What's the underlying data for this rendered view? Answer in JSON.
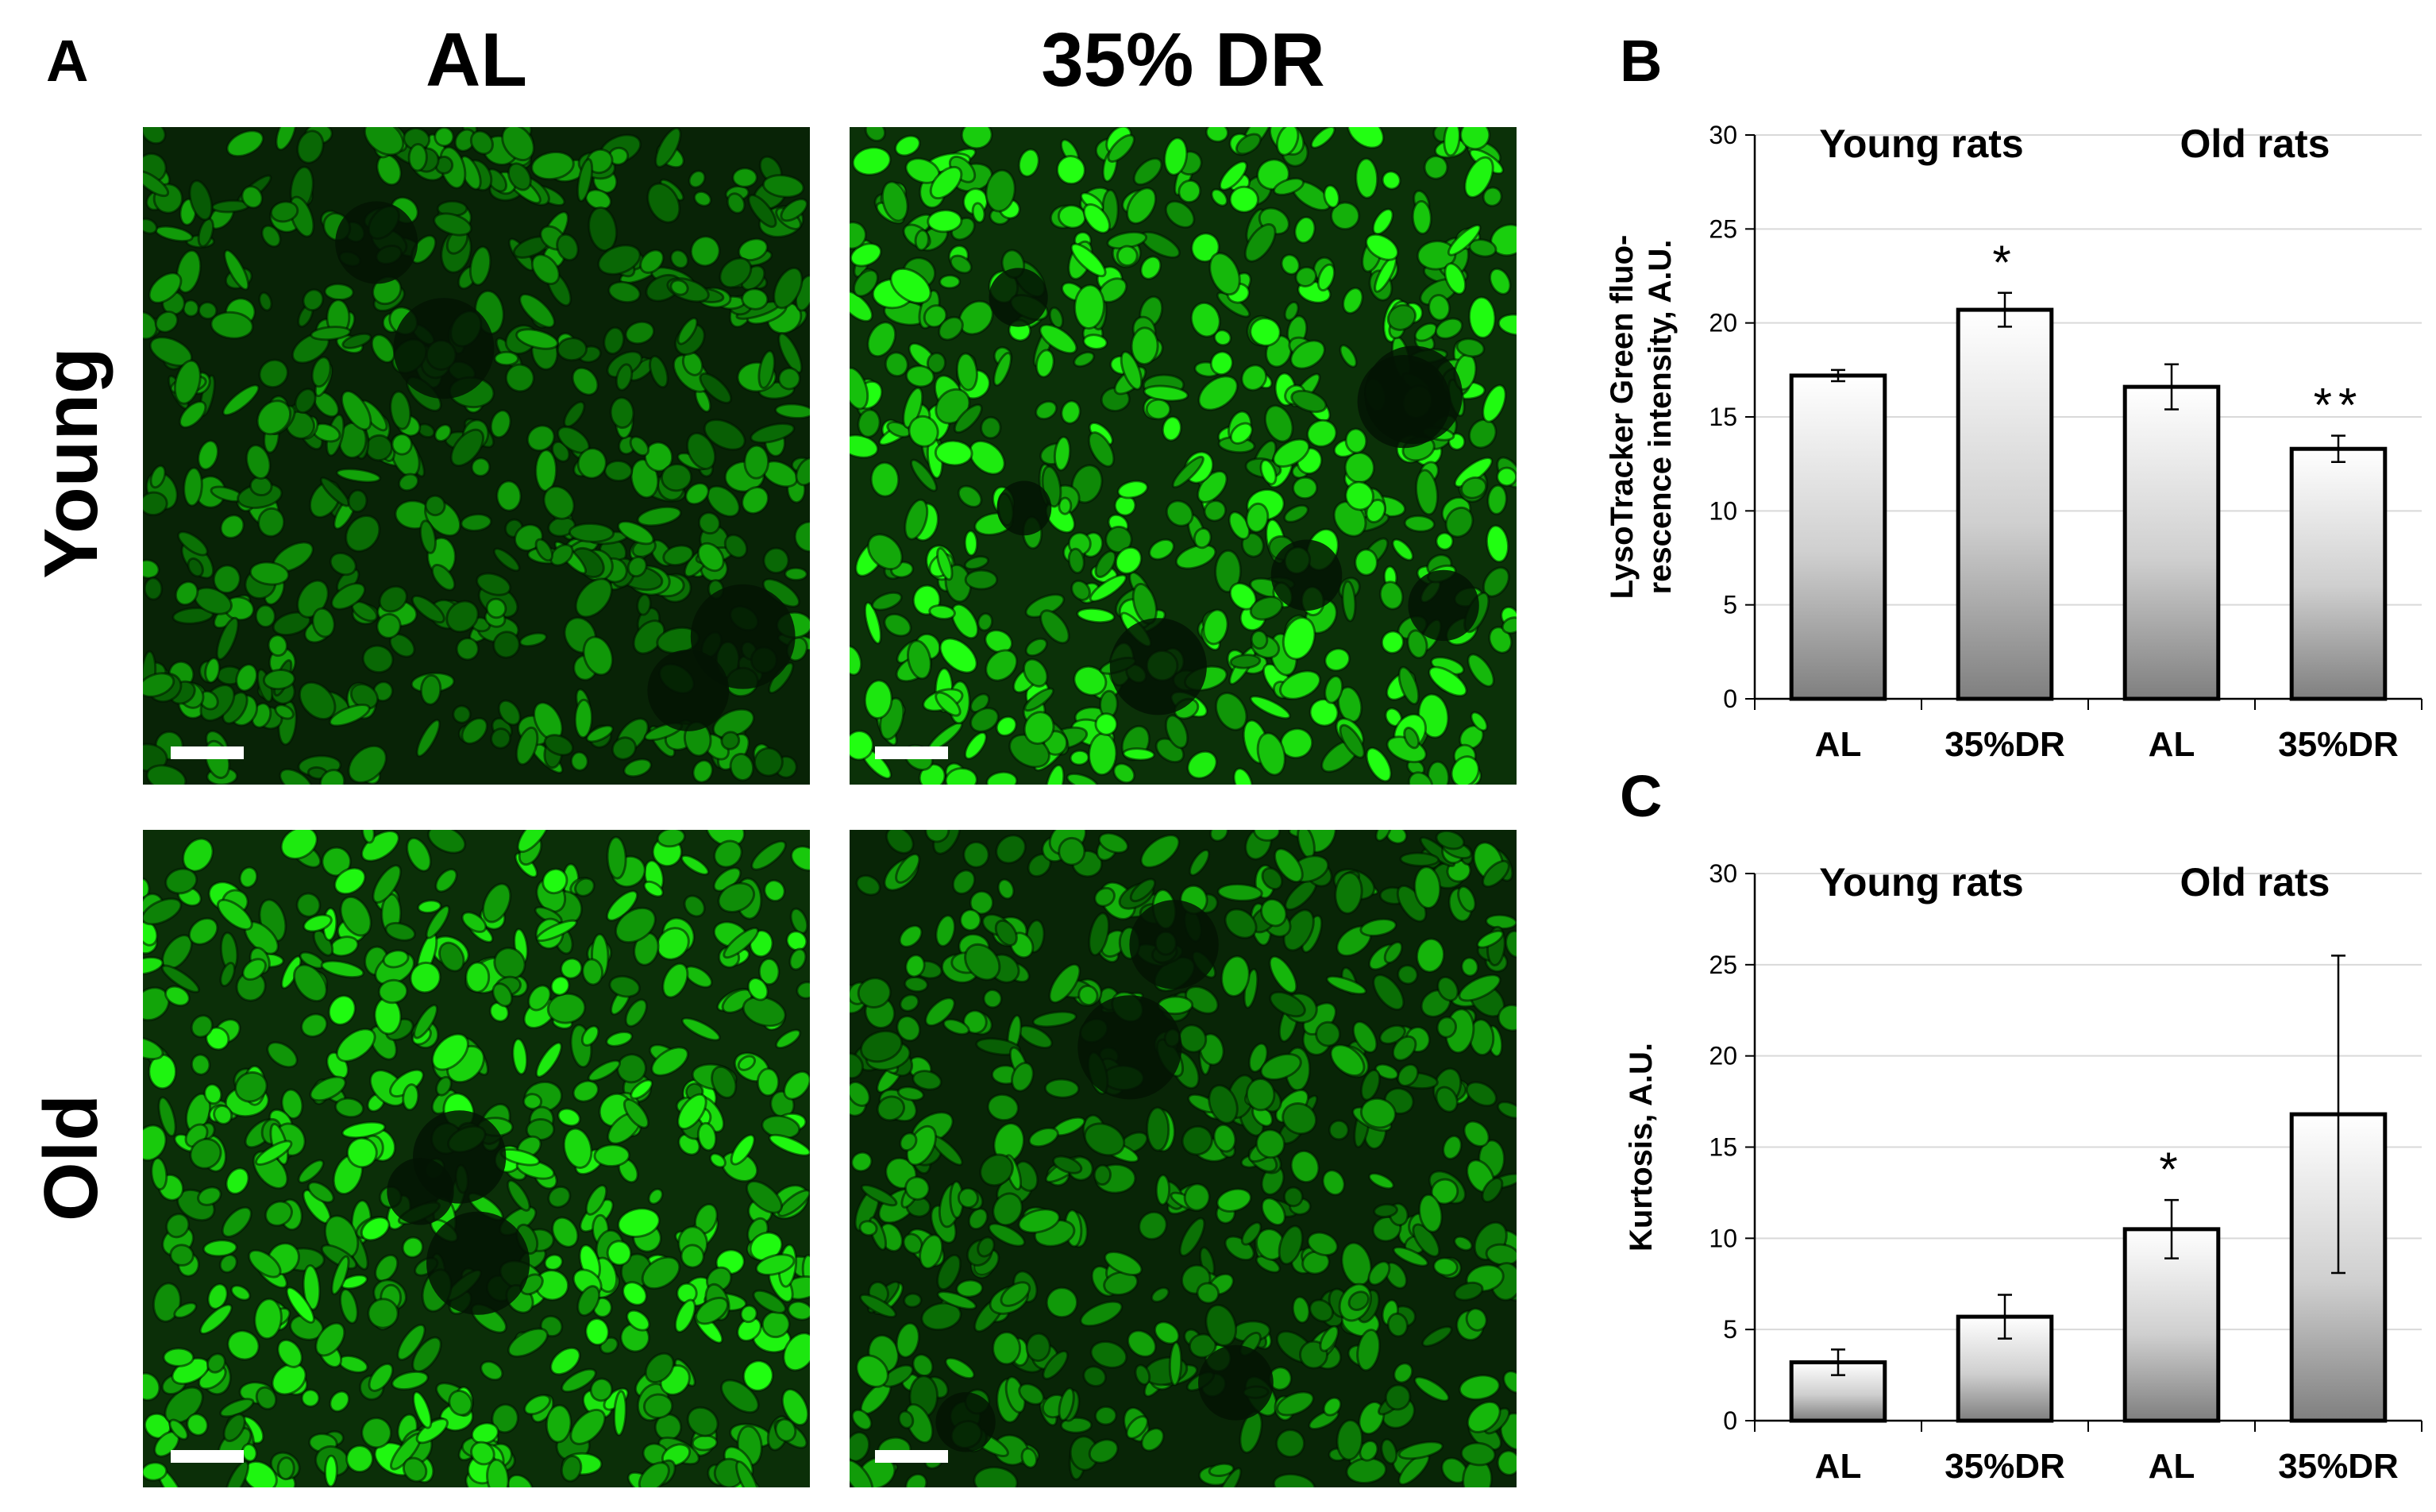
{
  "figure": {
    "panel_labels": {
      "a": "A",
      "b": "B",
      "c": "C"
    },
    "panel_a": {
      "column_headers": [
        "AL",
        "35% DR"
      ],
      "row_headers": [
        "Young",
        "Old"
      ],
      "images": [
        {
          "row": "Young",
          "column": "AL",
          "brightness": 0.55,
          "dark_spots": 4
        },
        {
          "row": "Young",
          "column": "35% DR",
          "brightness": 1.0,
          "dark_spots": 7
        },
        {
          "row": "Old",
          "column": "AL",
          "brightness": 0.9,
          "dark_spots": 3
        },
        {
          "row": "Old",
          "column": "35% DR",
          "brightness": 0.6,
          "dark_spots": 4
        }
      ],
      "colors": {
        "fluorescence": "#2ecc1a",
        "background": "#031203"
      }
    }
  },
  "chart_data": [
    {
      "panel": "B",
      "type": "bar",
      "categories": [
        "AL",
        "35%DR",
        "AL",
        "35%DR"
      ],
      "values": [
        17.2,
        20.7,
        16.6,
        13.3
      ],
      "errors": [
        0.3,
        0.9,
        1.2,
        0.7
      ],
      "significance": [
        "",
        "*",
        "",
        "**"
      ],
      "group_labels": [
        "Young rats",
        "Old rats"
      ],
      "ylabel": "LysoTracker Green fluo-rescence intensity, A.U.",
      "ylabel_lines": [
        "LysoTracker Green fluo-",
        "rescence intensity, A.U."
      ],
      "ylim": [
        0,
        30
      ],
      "yticks": [
        "0",
        "5",
        "10",
        "15",
        "20",
        "25",
        "30"
      ],
      "grid": true
    },
    {
      "panel": "C",
      "type": "bar",
      "categories": [
        "AL",
        "35%DR",
        "AL",
        "35%DR"
      ],
      "values": [
        3.2,
        5.7,
        10.5,
        16.8
      ],
      "errors": [
        0.7,
        1.2,
        1.6,
        8.7
      ],
      "significance": [
        "",
        "",
        "*",
        ""
      ],
      "group_labels": [
        "Young rats",
        "Old rats"
      ],
      "ylabel": "Kurtosis, A.U.",
      "ylabel_lines": [
        "Kurtosis, A.U."
      ],
      "ylim": [
        0,
        30
      ],
      "yticks": [
        "0",
        "5",
        "10",
        "15",
        "20",
        "25",
        "30"
      ],
      "grid": true
    }
  ]
}
